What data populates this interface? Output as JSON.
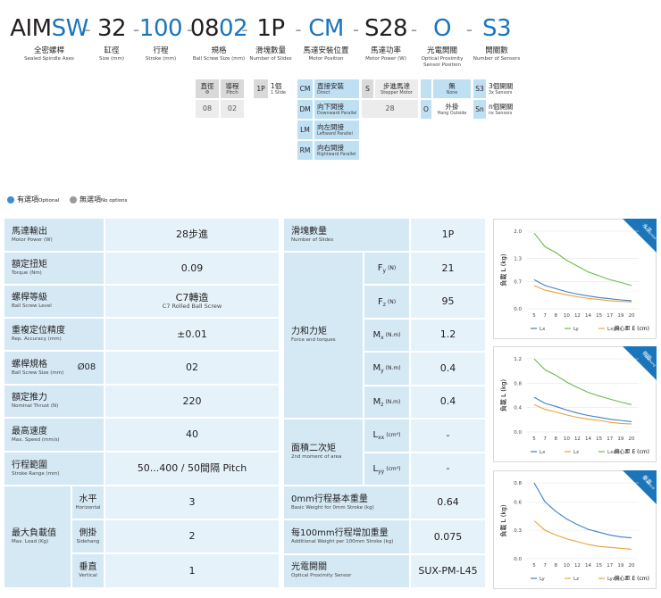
{
  "model": [
    {
      "parts": [
        {
          "text": "AIM",
          "color": "#231f20"
        },
        {
          "text": "SW",
          "color": "#1a75bb"
        }
      ],
      "zh": "全密螺桿",
      "en": "Sealed Spindle Axes"
    },
    {
      "parts": [
        {
          "text": "32",
          "color": "#231f20"
        }
      ],
      "zh": "缸徑",
      "en": "Size (mm)"
    },
    {
      "parts": [
        {
          "text": "100",
          "color": "#1a75bb"
        }
      ],
      "zh": "行程",
      "en": "Stroke (mm)"
    },
    {
      "parts": [
        {
          "text": "08",
          "color": "#231f20"
        },
        {
          "text": "02",
          "color": "#1a75bb"
        }
      ],
      "zh": "規格",
      "en": "Ball Screw Size (mm)"
    },
    {
      "parts": [
        {
          "text": "1P",
          "color": "#231f20"
        }
      ],
      "zh": "滑塊數量",
      "en": "Number of Slides"
    },
    {
      "parts": [
        {
          "text": "CM",
          "color": "#1a75bb"
        }
      ],
      "zh": "馬達安裝位置",
      "en": "Motor Position"
    },
    {
      "parts": [
        {
          "text": "S28",
          "color": "#231f20"
        }
      ],
      "zh": "馬達功率",
      "en": "Motor Power (W)"
    },
    {
      "parts": [
        {
          "text": "O",
          "color": "#1a75bb"
        }
      ],
      "zh": "光電開關",
      "en": "Optical Proximity Sensor Position"
    },
    {
      "parts": [
        {
          "text": "S3",
          "color": "#1a75bb"
        }
      ],
      "zh": "開關數",
      "en": "Number of Sensors"
    }
  ],
  "separator": "-",
  "options": {
    "ball_screw": {
      "headers": [
        {
          "zh": "直徑",
          "en": "Φ"
        },
        {
          "zh": "導程",
          "en": "Pitch"
        }
      ],
      "values": [
        "08",
        "02"
      ]
    },
    "slides": [
      {
        "code": "1P",
        "zh": "1個",
        "en": "1 Slide"
      }
    ],
    "motor_position": [
      {
        "code": "CM",
        "zh": "直接安裝",
        "en": "Direct"
      },
      {
        "code": "DM",
        "zh": "向下間接",
        "en": "Downward Parallel"
      },
      {
        "code": "LM",
        "zh": "向左間接",
        "en": "Leftward Parallel"
      },
      {
        "code": "RM",
        "zh": "向右間接",
        "en": "Rightward Parallel"
      }
    ],
    "motor": {
      "code": "S",
      "zh": "步進馬達",
      "en": "Stepper Motor",
      "value": "28"
    },
    "sensor": [
      {
        "zh": "無",
        "en": "None"
      },
      {
        "code": "O",
        "zh": "外掛",
        "en": "Hang Outside"
      }
    ],
    "sensors": [
      {
        "code": "S3",
        "zh": "3個開關",
        "en": "3x Sensors"
      },
      {
        "code": "Sn",
        "zh": "n個開關",
        "en": "nx Sensors"
      }
    ]
  },
  "legend": [
    {
      "zh": "有選項",
      "en": "Optional",
      "color": "#3b90cf"
    },
    {
      "zh": "無選項",
      "en": "No options",
      "color": "#9a9a9a"
    }
  ],
  "spec_left": [
    {
      "zh": "馬達輸出",
      "en": "Motor Power (W)",
      "value": "28步進"
    },
    {
      "zh": "額定扭矩",
      "en": "Torque (Nm)",
      "value": 0.09
    },
    {
      "zh": "螺桿等級",
      "en": "Ball Screw Level",
      "value": "C7轉造",
      "value_en": "C7 Rolled Ball Screw"
    },
    {
      "zh": "重複定位精度",
      "en": "Rep. Accuracy (mm)",
      "value": "±0.01"
    },
    {
      "zh": "螺桿規格",
      "en": "Ball Screw Size (mm)",
      "sub": "Ø08",
      "value": "02"
    },
    {
      "zh": "額定推力",
      "en": "Nominal Thrust (N)",
      "value": 220
    },
    {
      "zh": "最高速度",
      "en": "Max. Speed (mm/s)",
      "value": 40
    },
    {
      "zh": "行程範圍",
      "en": "Stroke Range (mm)",
      "value": "50...400 / 50間隔 Pitch"
    }
  ],
  "max_load": {
    "zh": "最大負載值",
    "en": "Max. Load (Kg)",
    "rows": [
      {
        "zh": "水平",
        "en": "Horizontal",
        "value": 3
      },
      {
        "zh": "側掛",
        "en": "Sidehang",
        "value": 2
      },
      {
        "zh": "垂直",
        "en": "Vertical",
        "value": 1
      }
    ]
  },
  "spec_mid": {
    "slides": {
      "zh": "滑塊數量",
      "en": "Number of Slides",
      "value": "1P"
    },
    "forces": {
      "zh": "力和力矩",
      "en": "Force and torques",
      "rows": [
        {
          "sym": "F",
          "sub": "y",
          "unit": "(N)",
          "value": 21
        },
        {
          "sym": "F",
          "sub": "z",
          "unit": "(N)",
          "value": 95
        },
        {
          "sym": "M",
          "sub": "x",
          "unit": "(N.m)",
          "value": 1.2
        },
        {
          "sym": "M",
          "sub": "y",
          "unit": "(N.m)",
          "value": 0.4
        },
        {
          "sym": "M",
          "sub": "z",
          "unit": "(N.m)",
          "value": 0.4
        }
      ]
    },
    "moment": {
      "zh": "面積二次矩",
      "en": "2nd moment of area",
      "rows": [
        {
          "sym": "L",
          "sub": "xx",
          "unit": "(cm⁴)",
          "value": "-"
        },
        {
          "sym": "L",
          "sub": "yy",
          "unit": "(cm⁴)",
          "value": "-"
        }
      ]
    },
    "weights": [
      {
        "zh": "0mm行程基本重量",
        "en": "Basic Weight for 0mm Stroke (kg)",
        "value": 0.64
      },
      {
        "zh": "每100mm行程增加重量",
        "en": "Additional Weight per 100mm Stroke (kg)",
        "value": 0.075
      },
      {
        "zh": "光電開關",
        "en": "Optical Proximity Sensor",
        "value": "SUX-PM-L45"
      }
    ]
  },
  "chart_data": [
    {
      "type": "line",
      "badge": "水平",
      "badge_en": "Horizontal",
      "y_label": "負載 L (kg)",
      "x_label": "偏心距 E (cm)",
      "categories": [
        5,
        7,
        8,
        10,
        12,
        14,
        15,
        17,
        19,
        20
      ],
      "ylim": [
        0,
        2.0
      ],
      "yticks": [
        {
          "value": 0,
          "label": "0.0"
        },
        0.7,
        1.3,
        {
          "value": 2,
          "label": "2.0"
        }
      ],
      "series": [
        {
          "name": "Lx",
          "color": "#3f7fc1",
          "values": [
            0.75,
            0.6,
            0.52,
            0.44,
            0.38,
            0.33,
            0.29,
            0.26,
            0.23,
            0.21
          ]
        },
        {
          "name": "Ly",
          "color": "#6dbb4c",
          "values": [
            1.95,
            1.6,
            1.45,
            1.25,
            1.1,
            0.95,
            0.85,
            0.75,
            0.68,
            0.6
          ]
        },
        {
          "name": "Lxy",
          "color": "#e8a33d",
          "values": [
            0.6,
            0.48,
            0.42,
            0.36,
            0.31,
            0.27,
            0.24,
            0.21,
            0.19,
            0.18
          ]
        }
      ]
    },
    {
      "type": "line",
      "badge": "側掛",
      "badge_en": "Sidehang",
      "y_label": "負載 L (kg)",
      "x_label": "偏心距 E (cm)",
      "categories": [
        5,
        7,
        8,
        10,
        12,
        14,
        15,
        17,
        19,
        20
      ],
      "ylim": [
        0,
        1.2
      ],
      "yticks": [
        {
          "value": 0,
          "label": "0.0"
        },
        0.4,
        0.8,
        1.2
      ],
      "series": [
        {
          "name": "Lx",
          "color": "#3f7fc1",
          "values": [
            0.57,
            0.47,
            0.42,
            0.36,
            0.31,
            0.27,
            0.24,
            0.21,
            0.19,
            0.17
          ]
        },
        {
          "name": "Lz",
          "color": "#e8a33d",
          "values": [
            0.45,
            0.37,
            0.33,
            0.28,
            0.24,
            0.21,
            0.19,
            0.16,
            0.14,
            0.13
          ]
        },
        {
          "name": "Lxz",
          "color": "#6dbb4c",
          "values": [
            1.2,
            1.02,
            0.93,
            0.82,
            0.73,
            0.65,
            0.59,
            0.54,
            0.49,
            0.45
          ]
        }
      ]
    },
    {
      "type": "line",
      "badge": "垂直",
      "badge_en": "Vertical",
      "y_label": "負載 L (kg)",
      "x_label": "偏心距 E (cm)",
      "categories": [
        5,
        7,
        8,
        10,
        12,
        14,
        15,
        17,
        19,
        20
      ],
      "ylim": [
        0,
        0.8
      ],
      "yticks": [
        {
          "value": 0,
          "label": "0.0"
        },
        0.3,
        0.6,
        0.8
      ],
      "series": [
        {
          "name": "Ly",
          "color": "#3f7fc1",
          "values": [
            0.8,
            0.6,
            0.5,
            0.42,
            0.36,
            0.31,
            0.28,
            0.25,
            0.23,
            0.22
          ]
        },
        {
          "name": "Lz",
          "color": "#e8a33d",
          "values": [
            0.4,
            0.3,
            0.25,
            0.21,
            0.18,
            0.15,
            0.13,
            0.12,
            0.11,
            0.1
          ]
        },
        {
          "name": "Lyz",
          "color": "#e8a33d",
          "values": [
            null,
            null,
            null,
            null,
            null,
            null,
            null,
            null,
            null,
            null
          ]
        }
      ]
    }
  ]
}
